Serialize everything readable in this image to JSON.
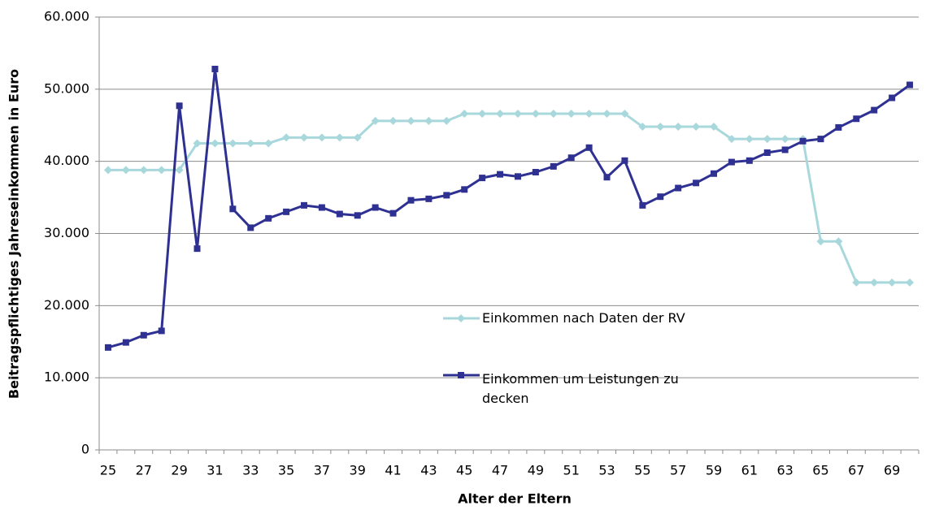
{
  "chart_data": {
    "type": "line",
    "xlabel": "Alter der Eltern",
    "ylabel": "Beitragspflichtiges Jahreseinkommen in Euro",
    "categories": [
      "25",
      null,
      "27",
      null,
      "29",
      null,
      "31",
      null,
      "33",
      null,
      "35",
      null,
      "37",
      null,
      "39",
      null,
      "41",
      null,
      "43",
      null,
      "45",
      null,
      "47",
      null,
      "49",
      null,
      "51",
      null,
      "53",
      null,
      "55",
      null,
      "57",
      null,
      "59",
      null,
      "61",
      null,
      "63",
      null,
      "65",
      null,
      "67",
      null,
      "69",
      null
    ],
    "series": [
      {
        "name": "Einkommen nach Daten der RV",
        "color": "#a8d8dc",
        "marker": "diamond",
        "values": [
          38800,
          38800,
          38800,
          38800,
          38800,
          42500,
          42500,
          42500,
          42500,
          42500,
          43300,
          43300,
          43300,
          43300,
          43300,
          45600,
          45600,
          45600,
          45600,
          45600,
          46600,
          46600,
          46600,
          46600,
          46600,
          46600,
          46600,
          46600,
          46600,
          46600,
          44800,
          44800,
          44800,
          44800,
          44800,
          43100,
          43100,
          43100,
          43100,
          43100,
          28900,
          28900,
          23200,
          23200,
          23200,
          23200
        ]
      },
      {
        "name": "Einkommen um Leistungen zu decken",
        "color": "#2e3192",
        "marker": "square",
        "values": [
          14200,
          14900,
          15900,
          16500,
          47700,
          27900,
          52800,
          33400,
          30800,
          32100,
          33000,
          33900,
          33600,
          32700,
          32500,
          33600,
          32800,
          34600,
          34800,
          35300,
          36100,
          37700,
          38200,
          37900,
          38500,
          39300,
          40500,
          41900,
          37800,
          40100,
          33900,
          35100,
          36300,
          37000,
          38300,
          39900,
          40100,
          41200,
          41600,
          42800,
          43100,
          44700,
          45900,
          47100,
          48800,
          50600
        ]
      }
    ],
    "ylim": [
      0,
      60000
    ],
    "yticks": [
      0,
      {
        "value": 10000,
        "label": "10.000"
      },
      {
        "value": 20000,
        "label": "20.000"
      },
      {
        "value": 30000,
        "label": "30.000"
      },
      {
        "value": 40000,
        "label": "40.000"
      },
      {
        "value": 50000,
        "label": "50.000"
      },
      {
        "value": 60000,
        "label": "60.000"
      }
    ],
    "grid": true
  }
}
